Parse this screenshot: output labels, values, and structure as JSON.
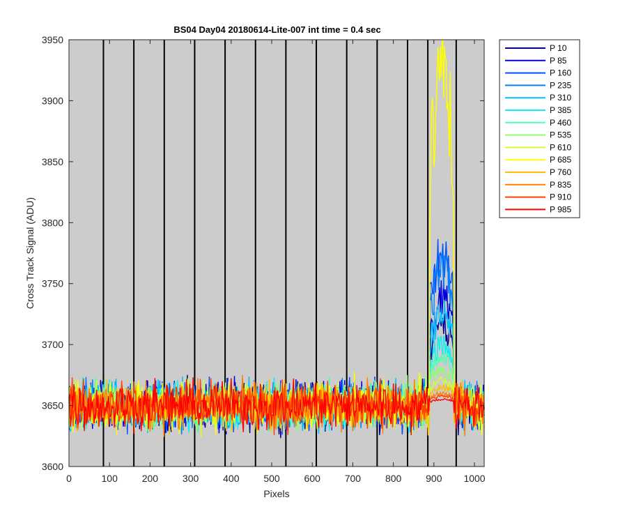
{
  "chart_data": {
    "type": "line",
    "title": "BS04 Day04 20180614-Lite-007 int time = 0.4 sec",
    "xlabel": "Pixels",
    "ylabel": "Cross Track Signal (ADU)",
    "xlim": [
      0,
      1024
    ],
    "ylim": [
      3600,
      3950
    ],
    "xticks": [
      0,
      100,
      200,
      300,
      400,
      500,
      600,
      700,
      800,
      900,
      1000
    ],
    "yticks": [
      3600,
      3650,
      3700,
      3750,
      3800,
      3850,
      3900,
      3950
    ],
    "background": "#cccccc",
    "vertical_markers": [
      85,
      160,
      235,
      310,
      385,
      460,
      535,
      610,
      685,
      760,
      835,
      885,
      955
    ],
    "legend_position": "outside-right",
    "baseline_mean": 3650,
    "baseline_noise_range": [
      3615,
      3675
    ],
    "signal_region_x": [
      885,
      955
    ],
    "series": [
      {
        "name": "P 10",
        "color": "#00008f",
        "peak": 3715
      },
      {
        "name": "P 85",
        "color": "#0000df",
        "peak": 3740
      },
      {
        "name": "P 160",
        "color": "#0050ff",
        "peak": 3775
      },
      {
        "name": "P 235",
        "color": "#0080ff",
        "peak": 3760
      },
      {
        "name": "P 310",
        "color": "#00bfff",
        "peak": 3725
      },
      {
        "name": "P 385",
        "color": "#10efef",
        "peak": 3700
      },
      {
        "name": "P 460",
        "color": "#50ffaf",
        "peak": 3690
      },
      {
        "name": "P 535",
        "color": "#8fff70",
        "peak": 3680
      },
      {
        "name": "P 610",
        "color": "#cfff30",
        "peak": 3670
      },
      {
        "name": "P 685",
        "color": "#ffff00",
        "peak": 3925
      },
      {
        "name": "P 760",
        "color": "#ffbf00",
        "peak": 3665
      },
      {
        "name": "P 835",
        "color": "#ff8000",
        "peak": 3660
      },
      {
        "name": "P 910",
        "color": "#ff4000",
        "peak": 3658
      },
      {
        "name": "P 985",
        "color": "#ff0000",
        "peak": 3655
      }
    ]
  }
}
